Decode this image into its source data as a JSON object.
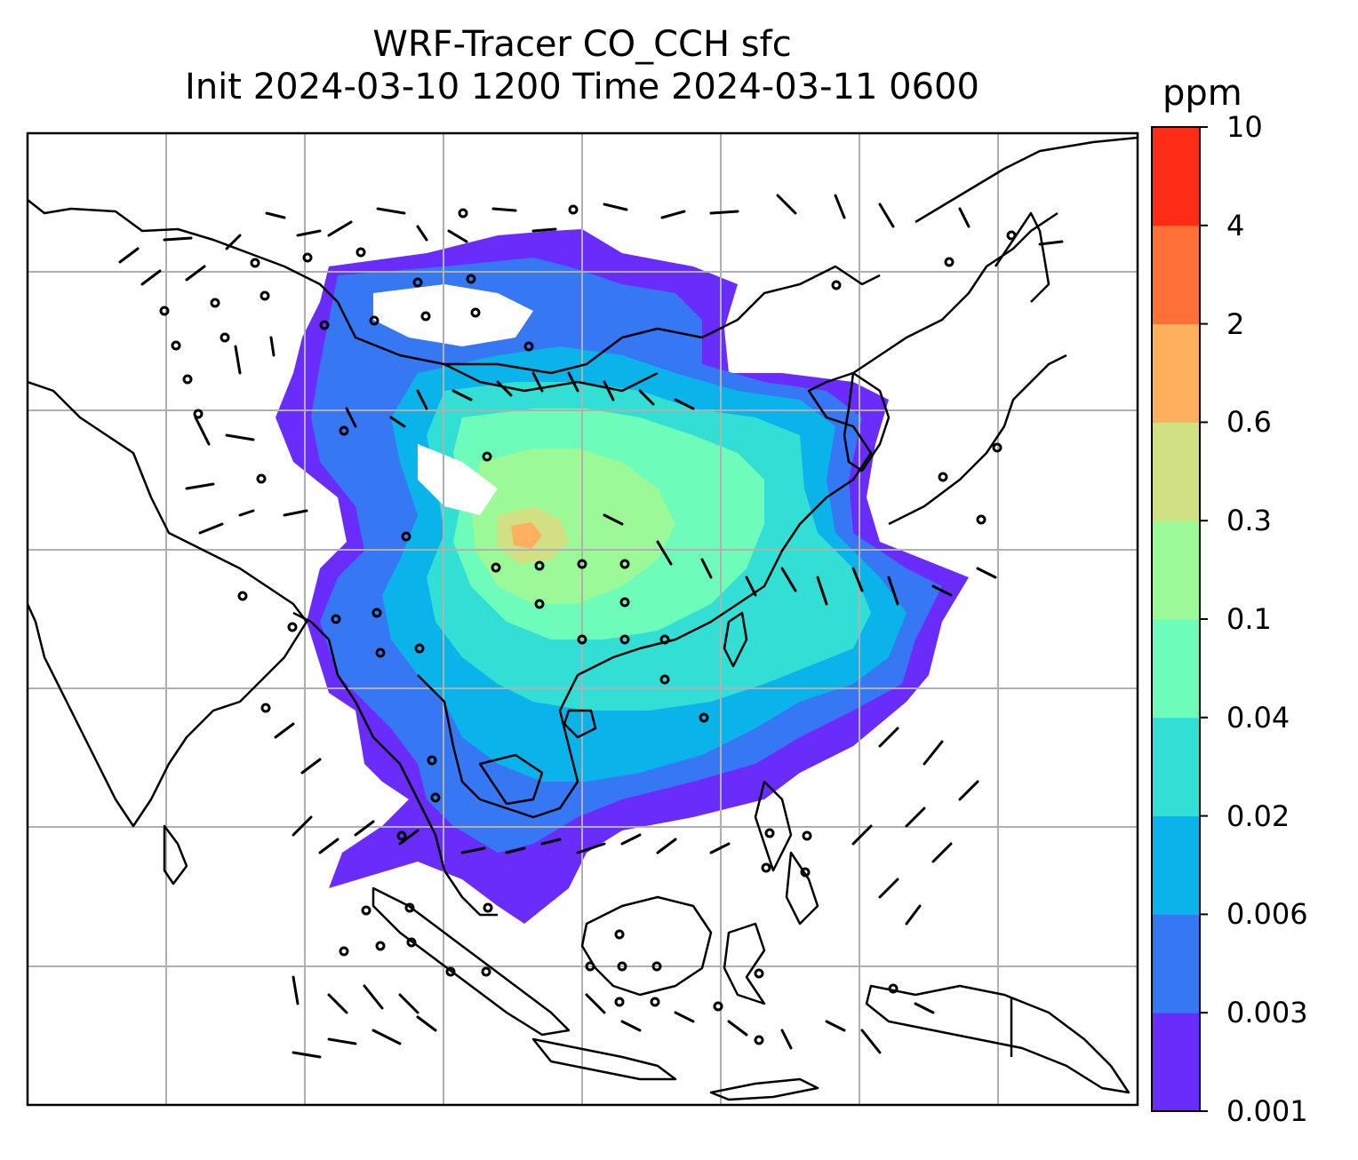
{
  "title_line1": "WRF-Tracer CO_CCH sfc",
  "title_line2": "Init 2024-03-10 1200 Time 2024-03-11 0600",
  "colorbar": {
    "unit": "ppm",
    "tick_labels": [
      "0.001",
      "0.003",
      "0.006",
      "0.02",
      "0.04",
      "0.1",
      "0.3",
      "0.6",
      "2",
      "4",
      "10"
    ],
    "colors": [
      "#6a2cfb",
      "#3677f4",
      "#0ab3ea",
      "#33dfd5",
      "#6dfcba",
      "#9bf997",
      "#d1e083",
      "#ffb05e",
      "#ff7039",
      "#ff2c17"
    ]
  },
  "map": {
    "field": "CO_CCH surface tracer",
    "overlays": [
      "coastlines",
      "country borders",
      "wind barbs",
      "lat/lon gridlines"
    ]
  }
}
